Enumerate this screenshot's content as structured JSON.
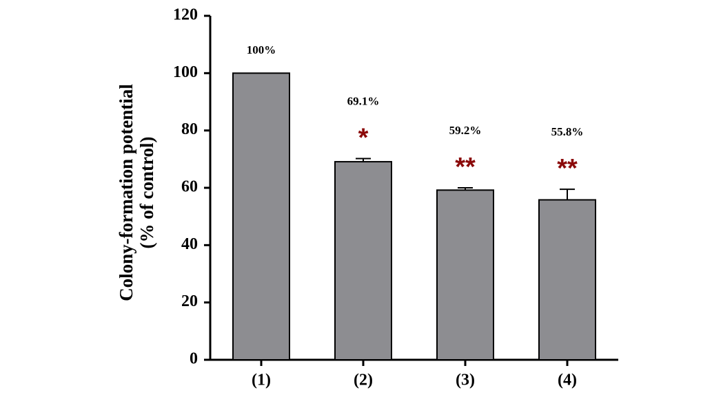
{
  "chart_data": {
    "type": "bar",
    "ylabel": [
      "Colony-formation potential",
      "(% of control)"
    ],
    "categories": [
      "(1)",
      "(2)",
      "(3)",
      "(4)"
    ],
    "values": [
      100,
      69.1,
      59.2,
      55.8
    ],
    "value_labels": [
      "100%",
      "69.1%",
      "59.2%",
      "55.8%"
    ],
    "errors": [
      null,
      1.1,
      0.8,
      3.7
    ],
    "significance": [
      null,
      "*",
      "**",
      "**"
    ],
    "color": "#8d8d91",
    "significance_color": "#8b0a0a",
    "ylim": [
      0,
      120
    ],
    "yticks": [
      0,
      20,
      40,
      60,
      80,
      100,
      120
    ]
  }
}
